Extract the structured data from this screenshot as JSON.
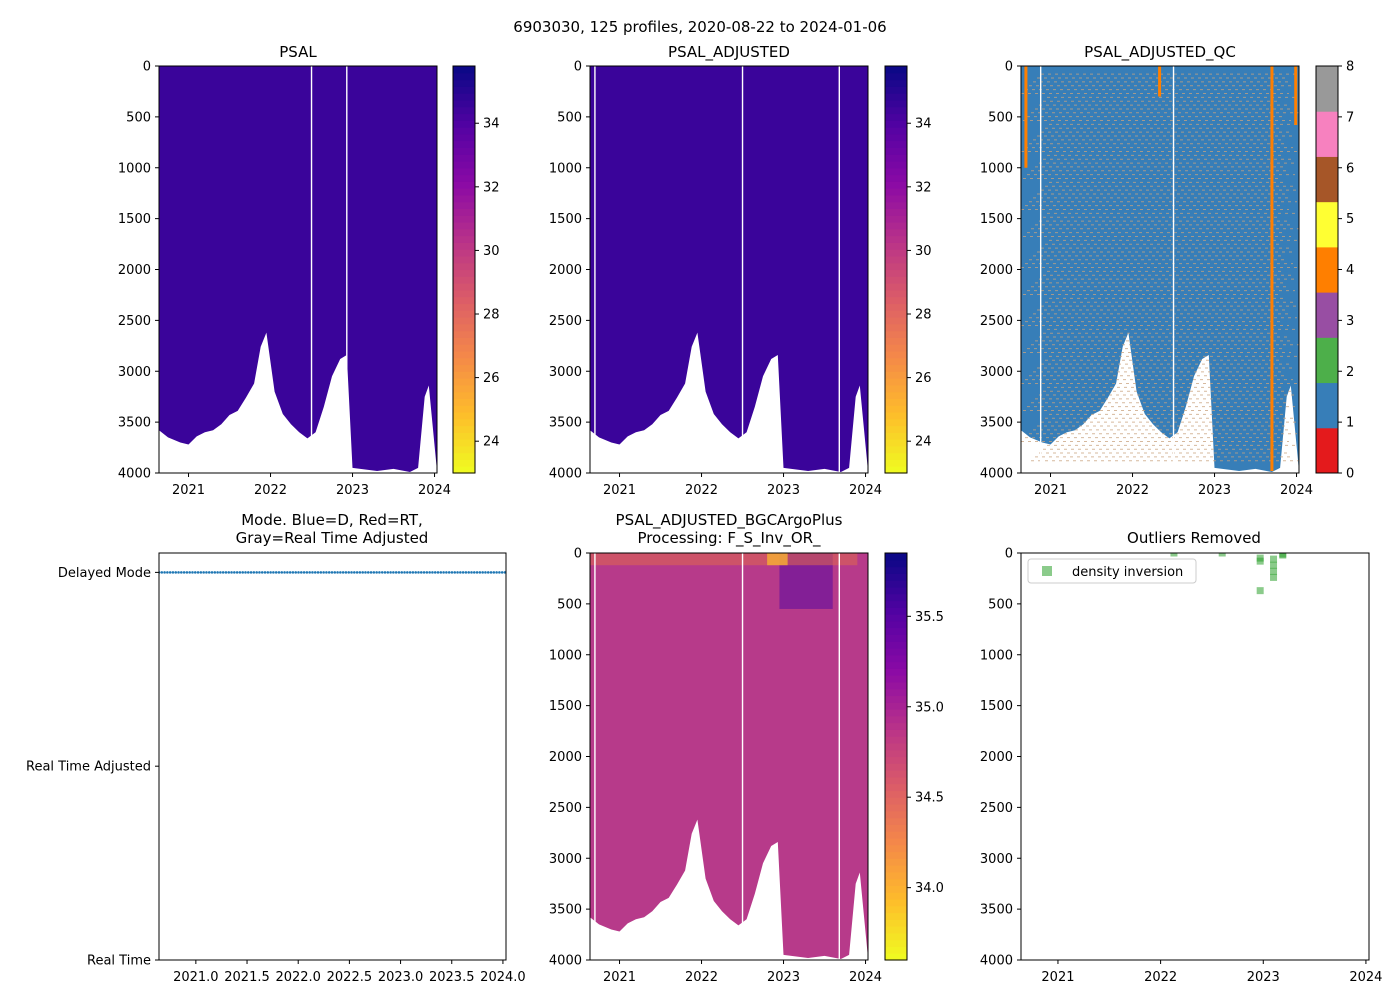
{
  "figure": {
    "suptitle": "6903030, 125 profiles, 2020-08-22 to 2024-01-06"
  },
  "chart_data": [
    {
      "id": "psal",
      "type": "heatmap",
      "title": "PSAL",
      "xlim": [
        2020.64,
        2024.03
      ],
      "ylim": [
        4000,
        0
      ],
      "xticks": [
        2021,
        2022,
        2023,
        2024
      ],
      "xticklabels": [
        "2021",
        "2022",
        "2023",
        "2024"
      ],
      "yticks": [
        0,
        500,
        1000,
        1500,
        2000,
        2500,
        3000,
        3500,
        4000
      ],
      "colormap": "plasma_r",
      "clim": [
        23,
        35.8
      ],
      "colorbar_ticks": [
        24,
        26,
        28,
        30,
        32,
        34
      ],
      "field_color": "#3a049a",
      "profile_gaps": [
        2022.5,
        2022.93
      ],
      "max_depth_profile": {
        "x": [
          2020.64,
          2020.75,
          2020.9,
          2021.0,
          2021.1,
          2021.2,
          2021.3,
          2021.4,
          2021.5,
          2021.6,
          2021.7,
          2021.8,
          2021.88,
          2021.95,
          2022.05,
          2022.15,
          2022.25,
          2022.35,
          2022.45,
          2022.55,
          2022.65,
          2022.75,
          2022.85,
          2022.93,
          2023.0,
          2023.3,
          2023.5,
          2023.7,
          2023.8,
          2023.88,
          2023.93,
          2024.03
        ],
        "depth": [
          3580,
          3650,
          3700,
          3720,
          3640,
          3600,
          3580,
          3520,
          3430,
          3390,
          3260,
          3120,
          2760,
          2620,
          3200,
          3420,
          3520,
          3600,
          3660,
          3600,
          3350,
          3050,
          2880,
          2840,
          3950,
          3980,
          3960,
          3990,
          3950,
          3250,
          3140,
          3980
        ]
      }
    },
    {
      "id": "psal_adjusted",
      "type": "heatmap",
      "title": "PSAL_ADJUSTED",
      "xlim": [
        2020.64,
        2024.03
      ],
      "ylim": [
        4000,
        0
      ],
      "xticks": [
        2021,
        2022,
        2023,
        2024
      ],
      "xticklabels": [
        "2021",
        "2022",
        "2023",
        "2024"
      ],
      "yticks": [
        0,
        500,
        1000,
        1500,
        2000,
        2500,
        3000,
        3500,
        4000
      ],
      "colormap": "plasma_r",
      "clim": [
        23,
        35.8
      ],
      "colorbar_ticks": [
        24,
        26,
        28,
        30,
        32,
        34
      ],
      "field_color": "#3a049a",
      "profile_gaps": [
        2020.7,
        2022.5,
        2023.68
      ],
      "max_depth_profile": {
        "x": [
          2020.64,
          2020.75,
          2020.9,
          2021.0,
          2021.1,
          2021.2,
          2021.3,
          2021.4,
          2021.5,
          2021.6,
          2021.7,
          2021.8,
          2021.88,
          2021.95,
          2022.05,
          2022.15,
          2022.25,
          2022.35,
          2022.45,
          2022.55,
          2022.65,
          2022.75,
          2022.85,
          2022.93,
          2023.0,
          2023.3,
          2023.5,
          2023.7,
          2023.8,
          2023.88,
          2023.93,
          2024.03
        ],
        "depth": [
          3580,
          3650,
          3700,
          3720,
          3640,
          3600,
          3580,
          3520,
          3430,
          3390,
          3260,
          3120,
          2760,
          2620,
          3200,
          3420,
          3520,
          3600,
          3660,
          3600,
          3350,
          3050,
          2880,
          2840,
          3950,
          3980,
          3960,
          3990,
          3950,
          3250,
          3140,
          3980
        ]
      }
    },
    {
      "id": "psal_adjusted_qc",
      "type": "heatmap",
      "title": "PSAL_ADJUSTED_QC",
      "xlim": [
        2020.64,
        2024.03
      ],
      "ylim": [
        4000,
        0
      ],
      "xticks": [
        2021,
        2022,
        2023,
        2024
      ],
      "xticklabels": [
        "2021",
        "2022",
        "2023",
        "2024"
      ],
      "yticks": [
        0,
        500,
        1000,
        1500,
        2000,
        2500,
        3000,
        3500,
        4000
      ],
      "field_color": "#377eb8",
      "flag_lines_color": "#c9a27e",
      "qc_colorbar": {
        "range": [
          0,
          8
        ],
        "ticks": [
          0,
          1,
          2,
          3,
          4,
          5,
          6,
          7,
          8
        ],
        "colors": [
          "#e41a1c",
          "#377eb8",
          "#4daf4a",
          "#984ea3",
          "#ff7f00",
          "#ffff33",
          "#a65628",
          "#f781bf",
          "#999999"
        ]
      },
      "flag4_segments": [
        {
          "x": 2020.7,
          "from": 0,
          "to": 1000
        },
        {
          "x": 2022.33,
          "from": 0,
          "to": 300
        },
        {
          "x": 2023.7,
          "from": 0,
          "to": 3980
        },
        {
          "x": 2023.99,
          "from": 0,
          "to": 580
        }
      ],
      "profile_gaps": [
        2020.88,
        2022.5
      ],
      "max_depth_profile": {
        "x": [
          2020.64,
          2020.75,
          2020.9,
          2021.0,
          2021.1,
          2021.2,
          2021.3,
          2021.4,
          2021.5,
          2021.6,
          2021.7,
          2021.8,
          2021.88,
          2021.95,
          2022.05,
          2022.15,
          2022.25,
          2022.35,
          2022.45,
          2022.55,
          2022.65,
          2022.75,
          2022.85,
          2022.93,
          2023.0,
          2023.3,
          2023.5,
          2023.7,
          2023.8,
          2023.88,
          2023.93,
          2024.03
        ],
        "depth": [
          3580,
          3650,
          3700,
          3720,
          3640,
          3600,
          3580,
          3520,
          3430,
          3390,
          3260,
          3120,
          2760,
          2620,
          3200,
          3420,
          3520,
          3600,
          3660,
          3600,
          3350,
          3050,
          2880,
          2840,
          3950,
          3980,
          3960,
          3990,
          3950,
          3250,
          3140,
          3980
        ]
      }
    },
    {
      "id": "mode",
      "type": "scatter",
      "title_lines": [
        "Mode. Blue=D, Red=RT,",
        "Gray=Real Time Adjusted"
      ],
      "xlim": [
        2020.64,
        2024.03
      ],
      "xticks": [
        2021.0,
        2021.5,
        2022.0,
        2022.5,
        2023.0,
        2023.5,
        2024.0
      ],
      "xticklabels": [
        "2021.0",
        "2021.5",
        "2022.0",
        "2022.5",
        "2023.0",
        "2023.5",
        "2024.0"
      ],
      "ylim": [
        0,
        2.1
      ],
      "yticks": [
        0,
        1,
        2
      ],
      "yticklabels": [
        "Real Time",
        "Real Time Adjusted",
        "Delayed Mode"
      ],
      "series": [
        {
          "name": "Delayed Mode",
          "x_start": 2020.64,
          "x_end": 2024.02,
          "count": 125,
          "y": 2,
          "color": "#1f77b4"
        }
      ]
    },
    {
      "id": "bgc",
      "type": "heatmap",
      "title_lines": [
        "PSAL_ADJUSTED_BGCArgoPlus",
        "Processing: F_S_Inv_OR_"
      ],
      "xlim": [
        2020.64,
        2024.03
      ],
      "ylim": [
        4000,
        0
      ],
      "xticks": [
        2021,
        2022,
        2023,
        2024
      ],
      "xticklabels": [
        "2021",
        "2022",
        "2023",
        "2024"
      ],
      "yticks": [
        0,
        500,
        1000,
        1500,
        2000,
        2500,
        3000,
        3500,
        4000
      ],
      "colormap": "plasma_r",
      "clim": [
        33.6,
        35.85
      ],
      "colorbar_ticks": [
        34.0,
        34.5,
        35.0,
        35.5
      ],
      "colorbar_ticklabels": [
        "34.0",
        "34.5",
        "35.0",
        "35.5"
      ],
      "field_color": "#b73a8a",
      "profile_gaps": [
        2020.7,
        2022.5,
        2023.68
      ],
      "max_depth_profile": {
        "x": [
          2020.64,
          2020.75,
          2020.9,
          2021.0,
          2021.1,
          2021.2,
          2021.3,
          2021.4,
          2021.5,
          2021.6,
          2021.7,
          2021.8,
          2021.88,
          2021.95,
          2022.05,
          2022.15,
          2022.25,
          2022.35,
          2022.45,
          2022.55,
          2022.65,
          2022.75,
          2022.85,
          2022.93,
          2023.0,
          2023.3,
          2023.5,
          2023.7,
          2023.8,
          2023.88,
          2023.93,
          2024.03
        ],
        "depth": [
          3580,
          3650,
          3700,
          3720,
          3640,
          3600,
          3580,
          3520,
          3430,
          3390,
          3260,
          3120,
          2760,
          2620,
          3200,
          3420,
          3520,
          3600,
          3660,
          3600,
          3350,
          3050,
          2880,
          2840,
          3950,
          3980,
          3960,
          3990,
          3950,
          3250,
          3140,
          3980
        ]
      }
    },
    {
      "id": "outliers",
      "type": "scatter",
      "title": "Outliers Removed",
      "xlim": [
        2020.64,
        2024.03
      ],
      "ylim": [
        4000,
        0
      ],
      "xticks": [
        2021,
        2022,
        2023,
        2024
      ],
      "xticklabels": [
        "2021",
        "2022",
        "2023",
        "2024"
      ],
      "yticks": [
        0,
        500,
        1000,
        1500,
        2000,
        2500,
        3000,
        3500,
        4000
      ],
      "legend": {
        "label": "density inversion",
        "color": "#2ca02c",
        "placement": "top-left"
      },
      "points": [
        {
          "x": 2022.13,
          "y": 0
        },
        {
          "x": 2022.6,
          "y": 0
        },
        {
          "x": 2022.97,
          "y": 50
        },
        {
          "x": 2022.97,
          "y": 80
        },
        {
          "x": 2022.97,
          "y": 370
        },
        {
          "x": 2023.1,
          "y": 60
        },
        {
          "x": 2023.1,
          "y": 120
        },
        {
          "x": 2023.1,
          "y": 180
        },
        {
          "x": 2023.1,
          "y": 240
        },
        {
          "x": 2023.19,
          "y": 10
        },
        {
          "x": 2023.19,
          "y": 20
        }
      ]
    }
  ]
}
